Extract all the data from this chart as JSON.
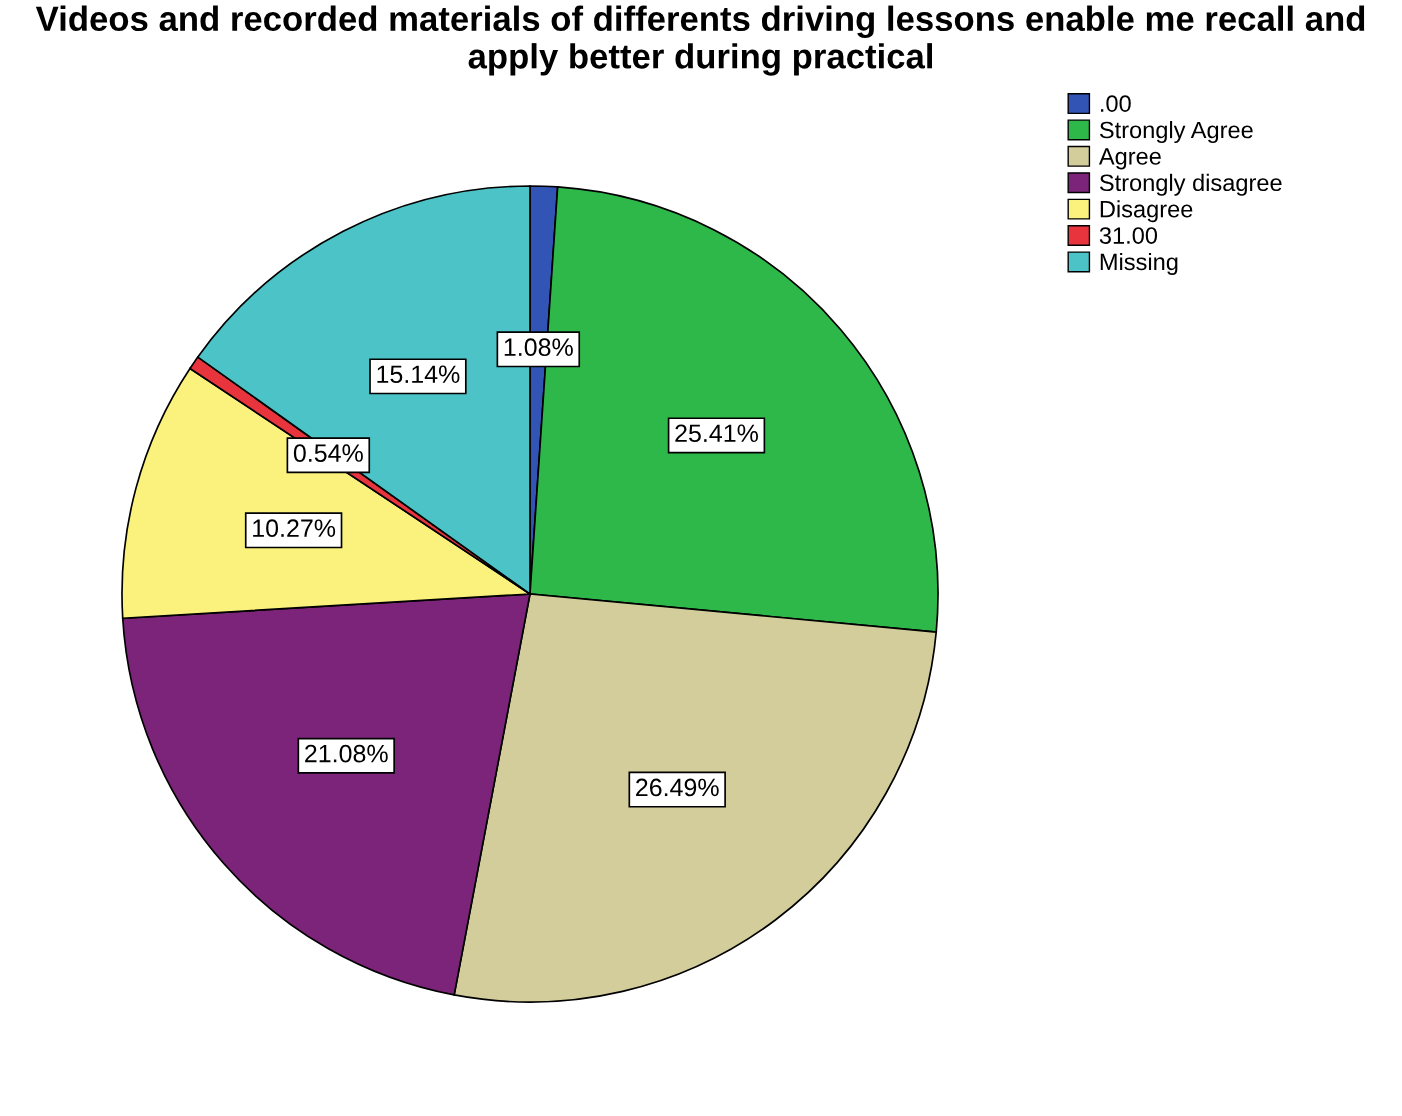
{
  "chart_data": {
    "type": "pie",
    "title": "Videos and recorded materials of differents driving lessons enable me recall and apply better during practical",
    "categories": [
      ".00",
      "Strongly Agree",
      "Agree",
      "Strongly disagree",
      "Disagree",
      "31.00",
      "Missing"
    ],
    "values": [
      1.08,
      25.41,
      26.49,
      21.08,
      10.27,
      0.54,
      15.14
    ],
    "value_labels": [
      "1.08%",
      "25.41%",
      "26.49%",
      "21.08%",
      "10.27%",
      "0.54%",
      "15.14%"
    ],
    "colors": [
      "#3254b4",
      "#2fb84a",
      "#d3cc9b",
      "#7b2479",
      "#faf27c",
      "#e8343c",
      "#4cc3c7"
    ],
    "legend": "top right"
  }
}
